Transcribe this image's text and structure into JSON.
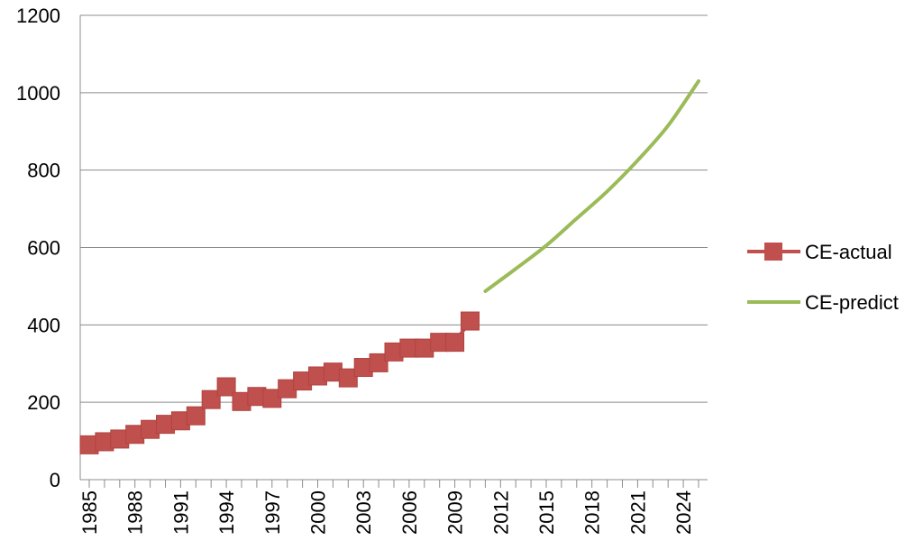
{
  "chart_data": {
    "type": "line",
    "ylim": [
      0,
      1200
    ],
    "yticks": [
      0,
      200,
      400,
      600,
      800,
      1000,
      1200
    ],
    "xlim": [
      1985,
      2025
    ],
    "xticks": [
      1985,
      1988,
      1991,
      1994,
      1997,
      2000,
      2003,
      2006,
      2009,
      2012,
      2015,
      2018,
      2021,
      2024
    ],
    "grid": true,
    "legend": "right",
    "series": [
      {
        "name": "CE-actual",
        "color": "#c0504d",
        "marker": "square",
        "x": [
          1985,
          1986,
          1987,
          1988,
          1989,
          1990,
          1991,
          1992,
          1993,
          1994,
          1995,
          1996,
          1997,
          1998,
          1999,
          2000,
          2001,
          2002,
          2003,
          2004,
          2005,
          2006,
          2007,
          2008,
          2009,
          2010
        ],
        "values": [
          90,
          98,
          105,
          117,
          130,
          143,
          152,
          165,
          207,
          240,
          202,
          215,
          210,
          235,
          255,
          268,
          278,
          263,
          290,
          302,
          330,
          340,
          340,
          355,
          355,
          410
        ]
      },
      {
        "name": "CE-predict",
        "color": "#9bbb59",
        "marker": "none",
        "x": [
          2011,
          2013,
          2015,
          2017,
          2019,
          2021,
          2023,
          2025
        ],
        "values": [
          487,
          545,
          605,
          675,
          745,
          825,
          915,
          1030
        ]
      }
    ]
  }
}
